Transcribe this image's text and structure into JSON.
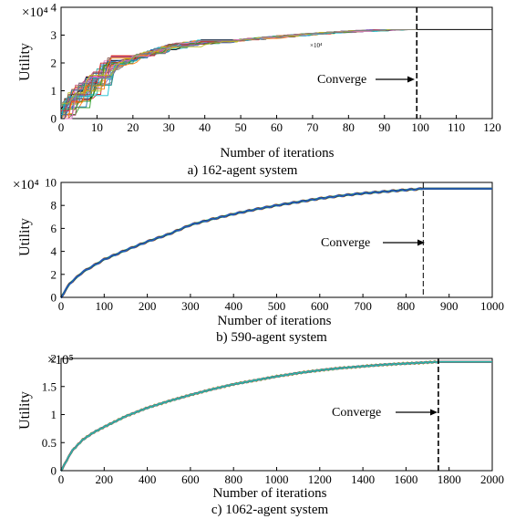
{
  "chart_data": [
    {
      "type": "line",
      "caption": "a) 162-agent system",
      "xlabel": "Number of iterations",
      "ylabel": "Utility",
      "y_multiplier_label": "×10⁴",
      "inner_annotation": "×10⁴",
      "xlim": [
        0,
        120
      ],
      "ylim": [
        0,
        4
      ],
      "xticks": [
        "0",
        "10",
        "20",
        "30",
        "40",
        "50",
        "60",
        "70",
        "80",
        "90",
        "100",
        "110",
        "120"
      ],
      "yticks": [
        "0",
        "1",
        "2",
        "3",
        "4"
      ],
      "converge_label": "Converge",
      "converge_x": 99,
      "converged_value": 3.2,
      "series_style": "many overlapping colored runs (one per agent)",
      "series": [
        {
          "x": [
            0,
            2,
            4,
            6,
            8,
            10,
            12,
            15,
            20,
            25,
            30,
            40,
            50,
            60,
            70,
            80,
            90,
            99,
            120
          ],
          "values": [
            0.0,
            0.4,
            0.7,
            0.9,
            1.1,
            1.3,
            1.6,
            1.85,
            2.1,
            2.3,
            2.5,
            2.68,
            2.8,
            2.92,
            3.02,
            3.1,
            3.16,
            3.2,
            3.2
          ]
        }
      ]
    },
    {
      "type": "line",
      "caption": "b) 590-agent system",
      "xlabel": "Number of iterations",
      "ylabel": "Utility",
      "y_multiplier_label": "×10⁴",
      "xlim": [
        0,
        1000
      ],
      "ylim": [
        0,
        10
      ],
      "xticks": [
        "0",
        "100",
        "200",
        "300",
        "400",
        "500",
        "600",
        "700",
        "800",
        "900",
        "1000"
      ],
      "yticks": [
        "0",
        "2",
        "4",
        "6",
        "8",
        "10"
      ],
      "converge_label": "Converge",
      "converge_x": 840,
      "converged_value": 9.45,
      "series": [
        {
          "x": [
            0,
            20,
            50,
            100,
            150,
            200,
            250,
            300,
            350,
            400,
            450,
            500,
            550,
            600,
            650,
            700,
            750,
            800,
            840,
            1000
          ],
          "values": [
            0.0,
            1.2,
            2.2,
            3.3,
            4.1,
            4.85,
            5.5,
            6.3,
            6.8,
            7.25,
            7.65,
            8.0,
            8.3,
            8.6,
            8.85,
            9.05,
            9.2,
            9.35,
            9.45,
            9.45
          ]
        }
      ]
    },
    {
      "type": "line",
      "caption": "c) 1062-agent system",
      "xlabel": "Number of iterations",
      "ylabel": "Utility",
      "y_multiplier_label": "×10⁵",
      "xlim": [
        0,
        2000
      ],
      "ylim": [
        0,
        2
      ],
      "xticks": [
        "0",
        "200",
        "400",
        "600",
        "800",
        "1000",
        "1200",
        "1400",
        "1600",
        "1800",
        "2000"
      ],
      "yticks": [
        "0",
        "0.5",
        "1",
        "1.5",
        "2"
      ],
      "converge_label": "Converge",
      "converge_x": 1750,
      "converged_value": 1.94,
      "series": [
        {
          "x": [
            0,
            50,
            100,
            150,
            200,
            300,
            400,
            500,
            600,
            700,
            800,
            900,
            1000,
            1100,
            1200,
            1300,
            1400,
            1500,
            1600,
            1750,
            2000
          ],
          "values": [
            0.0,
            0.35,
            0.55,
            0.68,
            0.78,
            0.97,
            1.12,
            1.24,
            1.35,
            1.45,
            1.54,
            1.61,
            1.68,
            1.74,
            1.79,
            1.83,
            1.86,
            1.89,
            1.91,
            1.94,
            1.94
          ]
        }
      ]
    }
  ]
}
